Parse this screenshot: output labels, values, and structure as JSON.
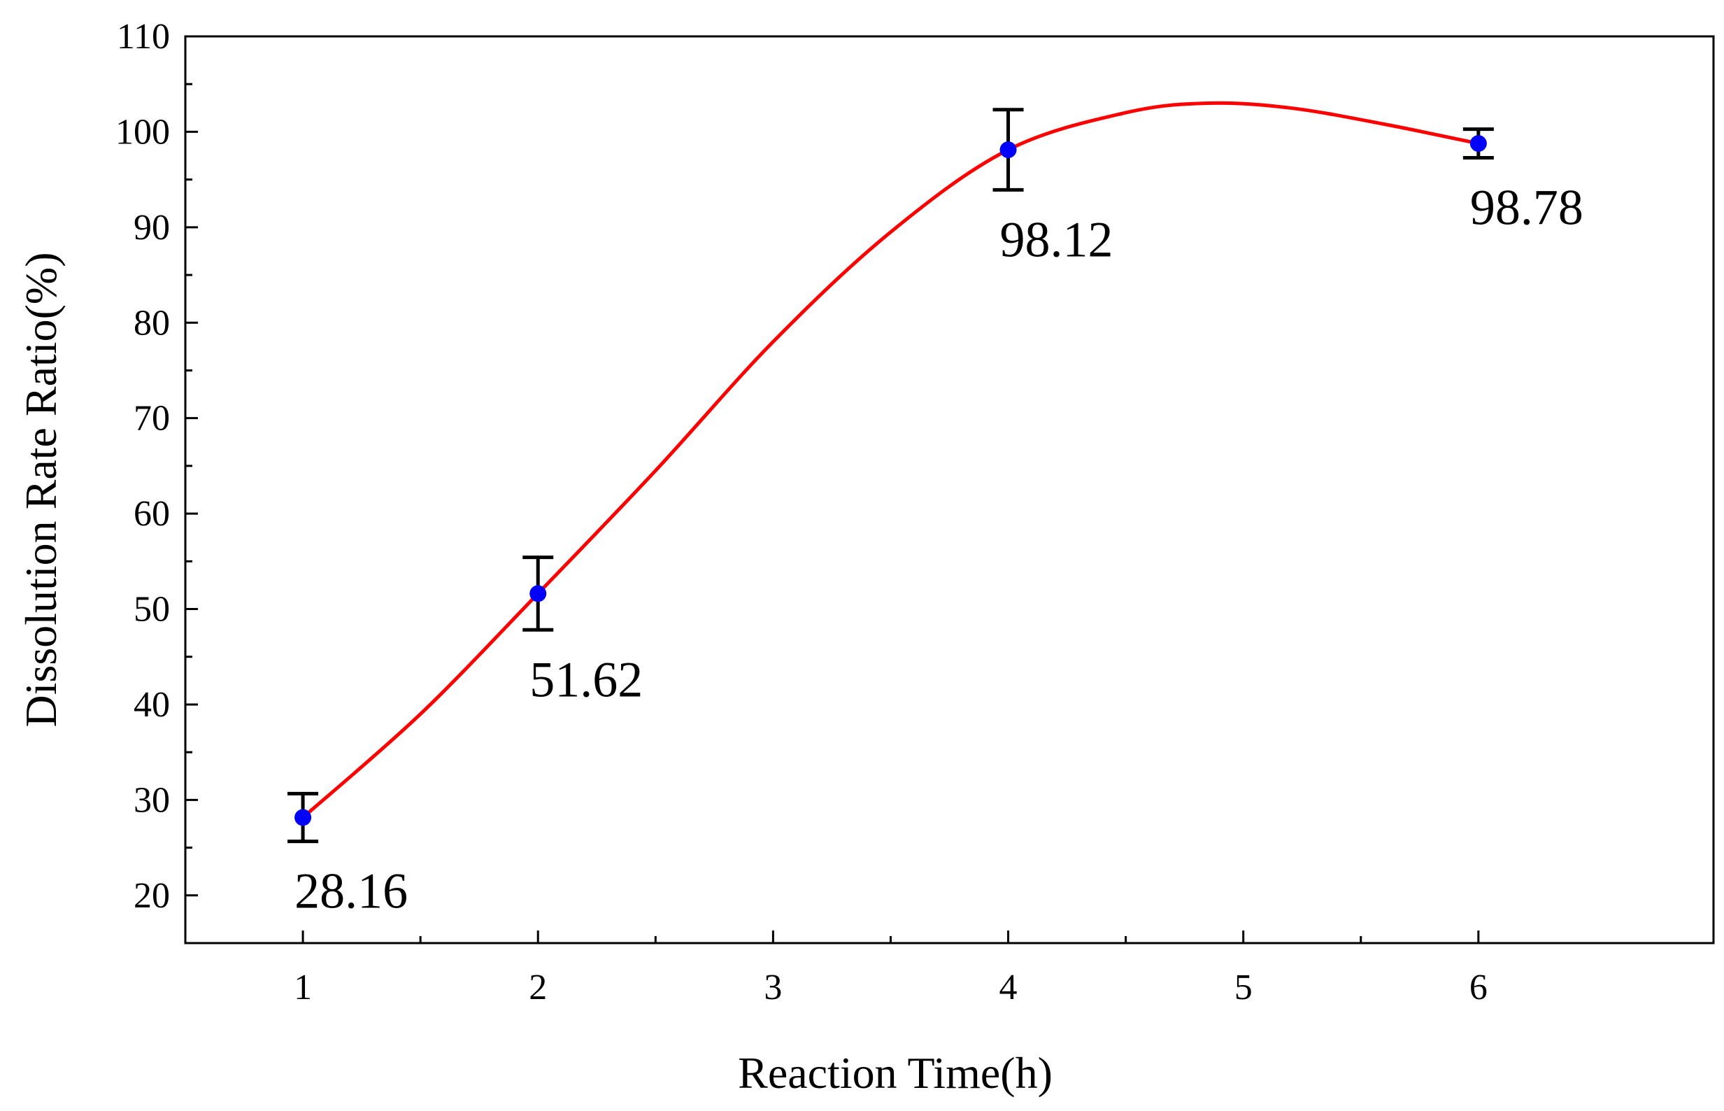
{
  "chart_data": {
    "type": "line",
    "title": "",
    "xlabel": "Reaction Time(h)",
    "ylabel": "Dissolution Rate Ratio(%)",
    "xlim": [
      0.5,
      7.0
    ],
    "ylim": [
      15,
      110
    ],
    "x_ticks": [
      1,
      2,
      3,
      4,
      5,
      6
    ],
    "y_ticks": [
      20,
      30,
      40,
      50,
      60,
      70,
      80,
      90,
      100,
      110
    ],
    "series": [
      {
        "name": "Dissolution Rate Ratio",
        "x": [
          1,
          2,
          4,
          6
        ],
        "y": [
          28.16,
          51.62,
          98.12,
          98.78
        ],
        "error": [
          2.5,
          3.8,
          4.2,
          1.5
        ],
        "labels": [
          "28.16",
          "51.62",
          "98.12",
          "98.78"
        ]
      }
    ],
    "fit_curve": {
      "x": [
        1,
        1.5,
        2,
        2.5,
        3,
        3.5,
        4,
        4.5,
        4.85,
        5.2,
        5.6,
        6
      ],
      "y": [
        28.16,
        39,
        51.62,
        64.5,
        78,
        89.5,
        98.12,
        102,
        103,
        102.5,
        100.8,
        98.78
      ]
    },
    "colors": {
      "curve": "#ff0000",
      "marker": "#0000ff",
      "errorbar": "#000000",
      "axis": "#000000"
    }
  }
}
